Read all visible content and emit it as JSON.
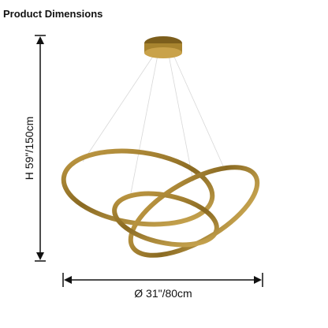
{
  "header": {
    "title": "Product Dimensions"
  },
  "dimensions": {
    "height": "H 59\"/150cm",
    "diameter": "Ø 31\"/80cm"
  }
}
